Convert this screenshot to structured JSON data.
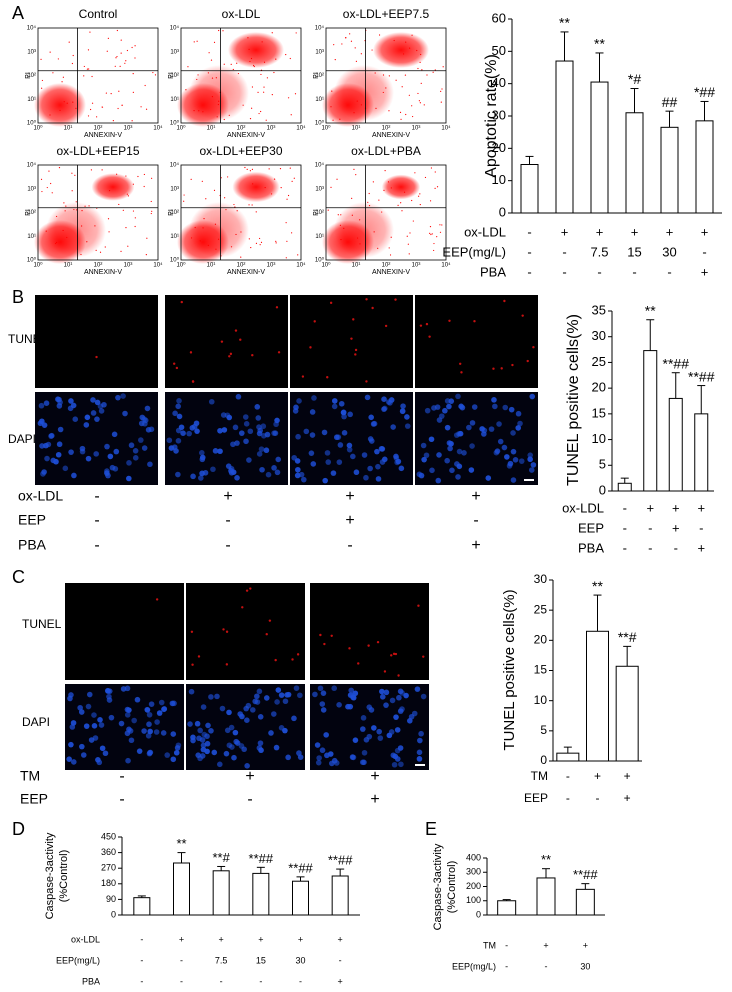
{
  "panel_labels": [
    "A",
    "B",
    "C",
    "D",
    "E"
  ],
  "flow_cytometry": {
    "titles": [
      "Control",
      "ox-LDL",
      "ox-LDL+EEP7.5",
      "ox-LDL+EEP15",
      "ox-LDL+EEP30",
      "ox-LDL+PBA"
    ],
    "x_label": "ANNEXIN-V",
    "y_label": "PI",
    "ticks": [
      "10⁰",
      "10¹",
      "10²",
      "10³",
      "10⁴"
    ]
  },
  "microscopy_b": {
    "rows": [
      "TUNEL",
      "DAPI"
    ],
    "conditions": [
      {
        "label": "ox-LDL",
        "values": [
          "-",
          "+",
          "+",
          "+"
        ]
      },
      {
        "label": "EEP",
        "values": [
          "-",
          "-",
          "+",
          "-"
        ]
      },
      {
        "label": "PBA",
        "values": [
          "-",
          "-",
          "-",
          "+"
        ]
      }
    ]
  },
  "microscopy_c": {
    "rows": [
      "TUNEL",
      "DAPI"
    ],
    "conditions": [
      {
        "label": "TM",
        "values": [
          "-",
          "+",
          "+"
        ]
      },
      {
        "label": "EEP",
        "values": [
          "-",
          "-",
          "+"
        ]
      }
    ]
  },
  "chart_data": [
    {
      "type": "bar",
      "y_label": [
        "Apoptotic rate(%)"
      ],
      "color": "#ffffff",
      "values": [
        15,
        47,
        40.5,
        31,
        26.5,
        28.5
      ],
      "errors": [
        2.5,
        9,
        9,
        7.5,
        5,
        6
      ],
      "annotations": [
        null,
        "**",
        "**",
        "*#",
        "##",
        "*##"
      ],
      "ylim": [
        0,
        60
      ],
      "yticks": [
        0,
        10,
        20,
        30,
        40,
        50,
        60
      ],
      "conditions": [
        {
          "label": "ox-LDL",
          "values": [
            "-",
            "+",
            "+",
            "+",
            "+",
            "+"
          ]
        },
        {
          "label": "EEP(mg/L)",
          "values": [
            "-",
            "-",
            "7.5",
            "15",
            "30",
            "-"
          ]
        },
        {
          "label": "PBA",
          "values": [
            "-",
            "-",
            "-",
            "-",
            "-",
            "+"
          ]
        }
      ]
    },
    {
      "type": "bar",
      "y_label": [
        "TUNEL positive cells(%)"
      ],
      "color": "#ffffff",
      "values": [
        1.5,
        27.3,
        18,
        15
      ],
      "errors": [
        1,
        6,
        5,
        5.5
      ],
      "annotations": [
        null,
        "**",
        "**##",
        "**##"
      ],
      "ylim": [
        0,
        35
      ],
      "yticks": [
        0,
        5,
        10,
        15,
        20,
        25,
        30,
        35
      ],
      "conditions": [
        {
          "label": "ox-LDL",
          "values": [
            "-",
            "+",
            "+",
            "+"
          ]
        },
        {
          "label": "EEP",
          "values": [
            "-",
            "-",
            "+",
            "-"
          ]
        },
        {
          "label": "PBA",
          "values": [
            "-",
            "-",
            "-",
            "+"
          ]
        }
      ]
    },
    {
      "type": "bar",
      "y_label": [
        "TUNEL positive cells(%)"
      ],
      "color": "#ffffff",
      "values": [
        1.3,
        21.5,
        15.7
      ],
      "errors": [
        1,
        6,
        3.3
      ],
      "annotations": [
        null,
        "**",
        "**#"
      ],
      "ylim": [
        0,
        30
      ],
      "yticks": [
        0,
        5,
        10,
        15,
        20,
        25,
        30
      ],
      "conditions": [
        {
          "label": "TM",
          "values": [
            "-",
            "+",
            "+"
          ]
        },
        {
          "label": "EEP",
          "values": [
            "-",
            "-",
            "+"
          ]
        }
      ]
    },
    {
      "type": "bar",
      "y_label": [
        "Caspase-3activity",
        "(%Control)"
      ],
      "color": "#ffffff",
      "values": [
        100,
        300,
        255,
        240,
        195,
        225
      ],
      "errors": [
        10,
        60,
        25,
        35,
        25,
        40
      ],
      "annotations": [
        null,
        "**",
        "**#",
        "**##",
        "**##",
        "**##"
      ],
      "ylim": [
        0,
        450
      ],
      "yticks": [
        0,
        90,
        180,
        270,
        360,
        450
      ],
      "conditions": [
        {
          "label": "ox-LDL",
          "values": [
            "-",
            "+",
            "+",
            "+",
            "+",
            "+"
          ]
        },
        {
          "label": "EEP(mg/L)",
          "values": [
            "-",
            "-",
            "7.5",
            "15",
            "30",
            "-"
          ]
        },
        {
          "label": "PBA",
          "values": [
            "-",
            "-",
            "-",
            "-",
            "-",
            "+"
          ]
        }
      ]
    },
    {
      "type": "bar",
      "y_label": [
        "Caspase-3activity",
        "(%Control)"
      ],
      "color": "#ffffff",
      "values": [
        100,
        260,
        180
      ],
      "errors": [
        8,
        65,
        40
      ],
      "annotations": [
        null,
        "**",
        "**##"
      ],
      "ylim": [
        0,
        400
      ],
      "yticks": [
        0,
        100,
        200,
        300,
        400
      ],
      "conditions": [
        {
          "label": "TM",
          "values": [
            "-",
            "+",
            "+"
          ]
        },
        {
          "label": "EEP(mg/L)",
          "values": [
            "-",
            "-",
            "30"
          ]
        }
      ]
    }
  ]
}
